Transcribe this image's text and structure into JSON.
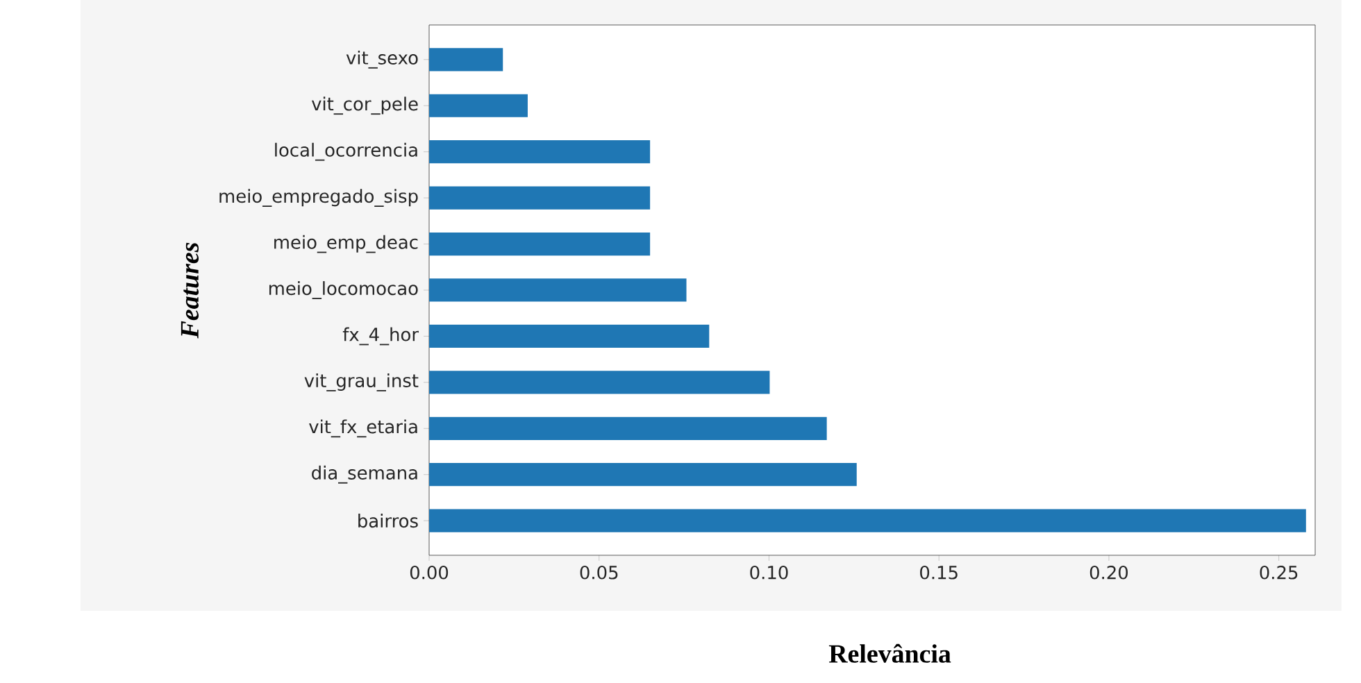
{
  "chart_data": {
    "type": "bar",
    "orientation": "horizontal",
    "xlabel": "Relevância",
    "ylabel": "Features",
    "categories": [
      "vit_sexo",
      "vit_cor_pele",
      "local_ocorrencia",
      "meio_empregado_sisp",
      "meio_emp_deac",
      "meio_locomocao",
      "fx_4_hor",
      "vit_grau_inst",
      "vit_fx_etaria",
      "dia_semana",
      "bairros"
    ],
    "values": [
      0.0217,
      0.029,
      0.065,
      0.065,
      0.065,
      0.0757,
      0.0824,
      0.1002,
      0.117,
      0.1258,
      0.258
    ],
    "color": "#1f77b4",
    "xlim": [
      0,
      0.2607
    ],
    "xticks": [
      {
        "value": 0,
        "label": "0.00"
      },
      {
        "value": 0.05,
        "label": "0.05"
      },
      {
        "value": 0.1,
        "label": "0.10"
      },
      {
        "value": 0.15,
        "label": "0.15"
      },
      {
        "value": 0.2,
        "label": "0.20"
      },
      {
        "value": 0.25,
        "label": "0.25"
      }
    ],
    "grid": false
  }
}
